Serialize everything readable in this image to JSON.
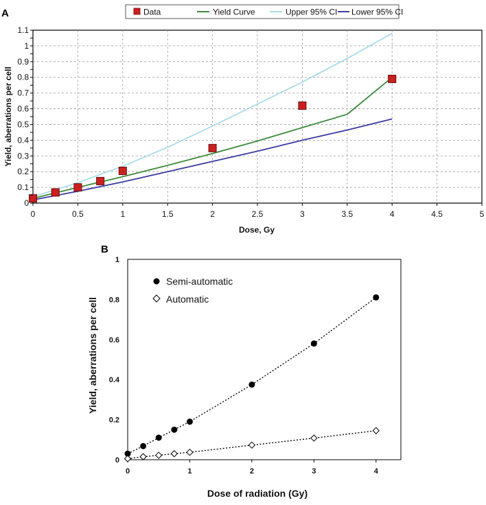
{
  "chart_data": [
    {
      "panel": "A",
      "type": "line",
      "title": "",
      "xlabel": "Dose, Gy",
      "ylabel": "Yield, aberrations per cell",
      "xlim": [
        0,
        5
      ],
      "ylim": [
        0,
        1.1
      ],
      "xticks": [
        "0",
        "0.5",
        "1",
        "1.5",
        "2",
        "2.5",
        "3",
        "3.5",
        "4",
        "4.5",
        "5"
      ],
      "yticks": [
        "0",
        "0.05",
        "0.1",
        "0.15",
        "0.2",
        "0.25",
        "0.3",
        "0.35",
        "0.4",
        "0.45",
        "0.5",
        "0.55",
        "0.6",
        "0.65",
        "0.7",
        "0.75",
        "0.8",
        "0.85",
        "0.9",
        "0.95",
        "1",
        "1.05",
        "1.1"
      ],
      "ytick_values": [
        0,
        0.05,
        0.1,
        0.15,
        0.2,
        0.25,
        0.3,
        0.35,
        0.4,
        0.45,
        0.5,
        0.55,
        0.6,
        0.65,
        0.7,
        0.75,
        0.8,
        0.85,
        0.9,
        0.95,
        1,
        1.05,
        1.1
      ],
      "grid": true,
      "legend_position": "top",
      "series": [
        {
          "name": "Data",
          "kind": "marker",
          "color": "#cc2020",
          "x": [
            0,
            0.25,
            0.5,
            0.75,
            1,
            2,
            3,
            4
          ],
          "values": [
            0.03,
            0.068,
            0.1,
            0.14,
            0.205,
            0.35,
            0.62,
            0.79
          ]
        },
        {
          "name": "Yield Curve",
          "kind": "line",
          "color": "#3a8a3a",
          "x": [
            0,
            0.5,
            1,
            1.5,
            2,
            2.5,
            3,
            3.5,
            4
          ],
          "values": [
            0.03,
            0.1,
            0.168,
            0.24,
            0.315,
            0.395,
            0.48,
            0.565,
            0.8
          ]
        },
        {
          "name": "Upper 95% CI",
          "kind": "line",
          "color": "#a8dce8",
          "x": [
            0,
            0.5,
            1,
            1.5,
            2,
            2.5,
            3,
            3.5,
            4
          ],
          "values": [
            0.04,
            0.13,
            0.235,
            0.355,
            0.49,
            0.63,
            0.77,
            0.92,
            1.08
          ]
        },
        {
          "name": "Lower 95% CI",
          "kind": "line",
          "color": "#3a3aa0",
          "x": [
            0,
            0.5,
            1,
            1.5,
            2,
            2.5,
            3,
            3.5,
            4
          ],
          "values": [
            0.02,
            0.075,
            0.135,
            0.2,
            0.265,
            0.33,
            0.4,
            0.465,
            0.535
          ]
        }
      ]
    },
    {
      "panel": "B",
      "type": "scatter",
      "title": "",
      "xlabel": "Dose of radiation (Gy)",
      "ylabel": "Yield, aberrations per cell",
      "xlim": [
        0,
        4.4
      ],
      "ylim": [
        0,
        1
      ],
      "xticks": [
        "0",
        "1",
        "2",
        "3",
        "4"
      ],
      "xtick_values": [
        0,
        1,
        2,
        3,
        4
      ],
      "yticks": [
        "0",
        "0.2",
        "0.4",
        "0.6",
        "0.8",
        "1"
      ],
      "ytick_values": [
        0,
        0.2,
        0.4,
        0.6,
        0.8,
        1
      ],
      "grid": false,
      "legend_position": "top-left",
      "series": [
        {
          "name": "Semi-automatic",
          "marker": "filled-circle",
          "color": "#000000",
          "x": [
            0,
            0.25,
            0.5,
            0.75,
            1,
            2,
            3,
            4
          ],
          "values": [
            0.03,
            0.068,
            0.11,
            0.15,
            0.19,
            0.375,
            0.58,
            0.81
          ]
        },
        {
          "name": "Automatic",
          "marker": "open-diamond",
          "color": "#000000",
          "x": [
            0,
            0.25,
            0.5,
            0.75,
            1,
            2,
            3,
            4
          ],
          "values": [
            0.005,
            0.015,
            0.022,
            0.03,
            0.037,
            0.073,
            0.108,
            0.145
          ]
        }
      ]
    }
  ],
  "panel_labels": {
    "a": "A",
    "b": "B"
  }
}
